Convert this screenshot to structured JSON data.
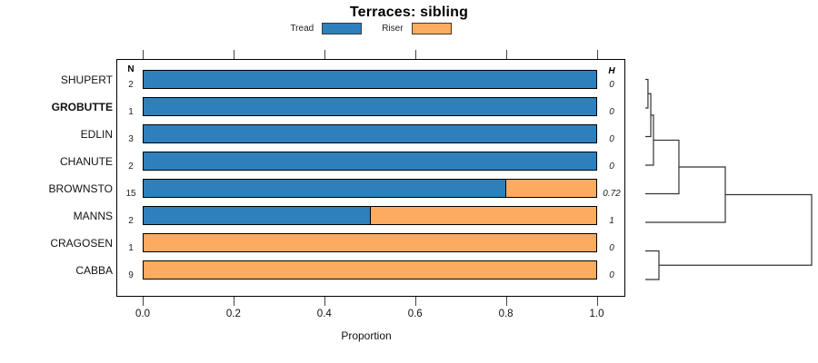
{
  "title": "Terraces: sibling",
  "xlabel": "Proportion",
  "columns": {
    "n": "N",
    "h": "H"
  },
  "legend": {
    "position": "top",
    "items": [
      {
        "label": "Tread",
        "color": "#2e80bd"
      },
      {
        "label": "Riser",
        "color": "#fcab61"
      }
    ]
  },
  "chart_data": {
    "type": "bar",
    "orientation": "horizontal",
    "stacked": true,
    "title": "Terraces: sibling",
    "xlabel": "Proportion",
    "xlim": [
      0,
      1
    ],
    "xticks": [
      "0.0",
      "0.2",
      "0.4",
      "0.6",
      "0.8",
      "1.0"
    ],
    "grid": false,
    "legend_position": "top",
    "categories": [
      "SHUPERT",
      "GROBUTTE",
      "EDLIN",
      "CHANUTE",
      "BROWNSTO",
      "MANNS",
      "CRAGOSEN",
      "CABBA"
    ],
    "highlighted_category": "GROBUTTE",
    "series": [
      {
        "name": "Tread",
        "color": "#2e80bd",
        "values": [
          1,
          1,
          1,
          1,
          0.8,
          0.5,
          0,
          0
        ]
      },
      {
        "name": "Riser",
        "color": "#fcab61",
        "values": [
          0,
          0,
          0,
          0,
          0.2,
          0.5,
          1,
          1
        ]
      }
    ],
    "row_annotations": {
      "N": [
        "2",
        "1",
        "3",
        "2",
        "15",
        "2",
        "1",
        "9"
      ],
      "H": [
        "0",
        "0",
        "0",
        "0",
        "0.72",
        "1",
        "0",
        "0"
      ]
    },
    "dendrogram": {
      "side": "right",
      "leaves": [
        "SHUPERT",
        "GROBUTTE",
        "EDLIN",
        "CHANUTE",
        "BROWNSTO",
        "MANNS",
        "CRAGOSEN",
        "CABBA"
      ],
      "merges": [
        {
          "id": "m1",
          "children": [
            "L0",
            "L1"
          ],
          "height": 0.016
        },
        {
          "id": "m2",
          "children": [
            "m1",
            "L2"
          ],
          "height": 0.033
        },
        {
          "id": "m3",
          "children": [
            "m2",
            "L3"
          ],
          "height": 0.049
        },
        {
          "id": "m4",
          "children": [
            "m3",
            "L4"
          ],
          "height": 0.202
        },
        {
          "id": "m5",
          "children": [
            "m4",
            "L5"
          ],
          "height": 0.481
        },
        {
          "id": "m6",
          "children": [
            "L6",
            "L7"
          ],
          "height": 0.082
        },
        {
          "id": "m7",
          "children": [
            "m5",
            "m6"
          ],
          "height": 1.0
        }
      ]
    }
  }
}
